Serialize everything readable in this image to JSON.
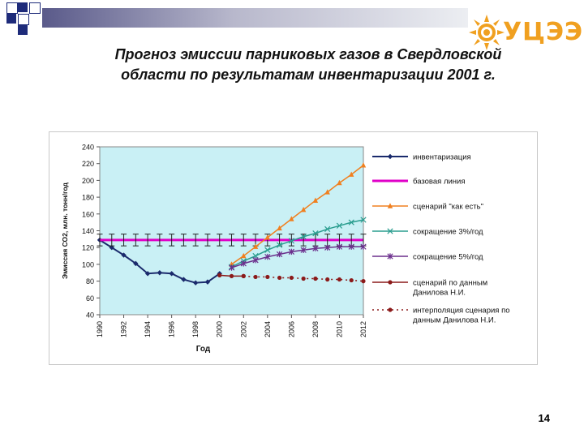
{
  "slide": {
    "title_line1": "Прогноз эмиссии парниковых газов в Свердловской",
    "title_line2": "области по результатам инвентаризации 2001 г.",
    "page_number": "14",
    "logo_text": "УЦЭЭ"
  },
  "colors": {
    "plot_bg": "#c9f0f5",
    "accent_blue": "#1e2b7a",
    "inventory": "#1a2a6c",
    "baseline": "#e000c8",
    "as_is": "#f08020",
    "reduction3": "#2a9d8f",
    "reduction5": "#6b2f8c",
    "danilov": "#8b1a1a",
    "logo": "#f0a020"
  },
  "chart_data": {
    "type": "line",
    "xlabel": "Год",
    "ylabel": "Эмиссия СО2, млн. тонн/год",
    "xlim": [
      1990,
      2012
    ],
    "ylim": [
      40,
      240
    ],
    "yticks": [
      40,
      60,
      80,
      100,
      120,
      140,
      160,
      180,
      200,
      220,
      240
    ],
    "xtick_labels": [
      "1990",
      "1992",
      "1994",
      "1996",
      "1998",
      "2000",
      "2002",
      "2004",
      "2006",
      "2008",
      "2010",
      "2012"
    ],
    "grid": false,
    "legend_position": "right",
    "series": [
      {
        "name": "инвентаризация",
        "marker": "diamond",
        "x": [
          1990,
          1991,
          1992,
          1993,
          1994,
          1995,
          1996,
          1997,
          1998,
          1999,
          2000
        ],
        "y": [
          129,
          120,
          111,
          101,
          89,
          90,
          89,
          82,
          78,
          79,
          89
        ]
      },
      {
        "name": "базовая линия",
        "marker": "errorbar",
        "error": 7,
        "x": [
          1990,
          1991,
          1992,
          1993,
          1994,
          1995,
          1996,
          1997,
          1998,
          1999,
          2000,
          2001,
          2002,
          2003,
          2004,
          2005,
          2006,
          2007,
          2008,
          2009,
          2010,
          2011,
          2012
        ],
        "y": [
          129,
          129,
          129,
          129,
          129,
          129,
          129,
          129,
          129,
          129,
          129,
          129,
          129,
          129,
          129,
          129,
          129,
          129,
          129,
          129,
          129,
          129,
          129
        ]
      },
      {
        "name": "сценарий \"как есть\"",
        "marker": "triangle",
        "x": [
          2001,
          2002,
          2003,
          2004,
          2005,
          2006,
          2007,
          2008,
          2009,
          2010,
          2011,
          2012
        ],
        "y": [
          100,
          110,
          121,
          132,
          143,
          154,
          165,
          176,
          186,
          197,
          207,
          218
        ]
      },
      {
        "name": "сокращение 3%/год",
        "marker": "x",
        "x": [
          2001,
          2002,
          2003,
          2004,
          2005,
          2006,
          2007,
          2008,
          2009,
          2010,
          2011,
          2012
        ],
        "y": [
          97,
          104,
          110,
          117,
          123,
          128,
          133,
          137,
          142,
          146,
          150,
          153
        ]
      },
      {
        "name": "сокращение 5%/год",
        "marker": "star",
        "x": [
          2001,
          2002,
          2003,
          2004,
          2005,
          2006,
          2007,
          2008,
          2009,
          2010,
          2011,
          2012
        ],
        "y": [
          96,
          101,
          105,
          109,
          112,
          115,
          117,
          119,
          120,
          121,
          121,
          121
        ]
      },
      {
        "name": "сценарий по данным Данилова Н.И.",
        "marker": "circle",
        "x": [
          2000,
          2001,
          2002
        ],
        "y": [
          87,
          86,
          86
        ]
      },
      {
        "name": "интерполяция сценария по данным Данилова Н.И.",
        "marker": "circle",
        "dashed": true,
        "x": [
          2002,
          2003,
          2004,
          2005,
          2006,
          2007,
          2008,
          2009,
          2010,
          2011,
          2012
        ],
        "y": [
          86,
          85,
          85,
          84,
          84,
          83,
          83,
          82,
          82,
          81,
          80
        ]
      }
    ]
  }
}
